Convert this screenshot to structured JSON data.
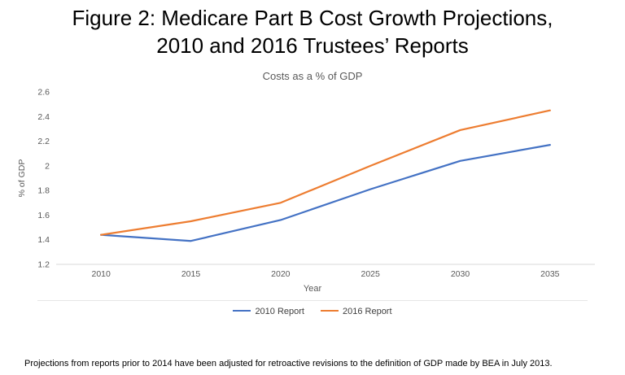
{
  "figure_title": {
    "line1": "Figure 2:  Medicare Part B Cost Growth Projections,",
    "line2": "2010 and 2016 Trustees’ Reports"
  },
  "footnote": "Projections from reports prior to 2014 have been adjusted for retroactive revisions to the definition of GDP made by BEA in July 2013.",
  "chart_data": {
    "type": "line",
    "title": "Costs as a % of GDP",
    "xlabel": "Year",
    "ylabel": "% of GDP",
    "x": [
      2010,
      2015,
      2020,
      2025,
      2030,
      2035
    ],
    "ylim": [
      1.2,
      2.6
    ],
    "ytick_step": 0.2,
    "grid": false,
    "legend_position": "bottom",
    "axis_color": "#d9d9d9",
    "tick_label_color": "#595959",
    "series": [
      {
        "name": "2010 Report",
        "color": "#4472c4",
        "values": [
          1.44,
          1.39,
          1.56,
          1.81,
          2.04,
          2.17
        ]
      },
      {
        "name": "2016 Report",
        "color": "#ed7d31",
        "values": [
          1.44,
          1.55,
          1.7,
          2.0,
          2.29,
          2.45
        ]
      }
    ]
  }
}
